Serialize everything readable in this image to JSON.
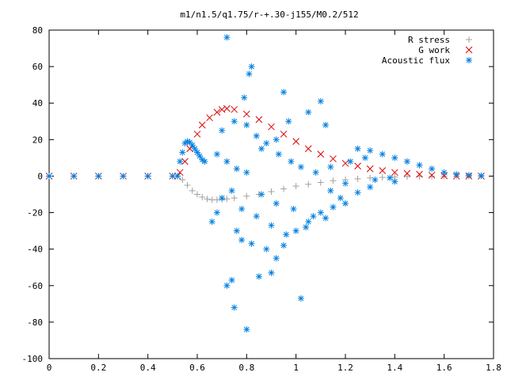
{
  "chart_data": {
    "type": "scatter",
    "title": "m1/n1.5/q1.75/r-+.30-j155/M0.2/512",
    "xlabel": "",
    "ylabel": "",
    "xlim": [
      0,
      1.8
    ],
    "ylim": [
      -100,
      80
    ],
    "xticks": [
      "0",
      "0.2",
      "0.4",
      "0.6",
      "0.8",
      "1",
      "1.2",
      "1.4",
      "1.6",
      "1.8"
    ],
    "yticks": [
      "80",
      "60",
      "40",
      "20",
      "0",
      "-20",
      "-40",
      "-60",
      "-80",
      "-100"
    ],
    "legend_position": "top-right",
    "series": [
      {
        "name": "R stress",
        "marker": "+",
        "color": "#a0a0a0",
        "points": [
          [
            0.0,
            0
          ],
          [
            0.1,
            0
          ],
          [
            0.2,
            0
          ],
          [
            0.3,
            0
          ],
          [
            0.4,
            0
          ],
          [
            0.5,
            0
          ],
          [
            0.52,
            0
          ],
          [
            0.54,
            -2
          ],
          [
            0.56,
            -5
          ],
          [
            0.58,
            -8
          ],
          [
            0.6,
            -10
          ],
          [
            0.62,
            -11.5
          ],
          [
            0.64,
            -12.5
          ],
          [
            0.66,
            -13
          ],
          [
            0.68,
            -13
          ],
          [
            0.7,
            -12.8
          ],
          [
            0.72,
            -12.5
          ],
          [
            0.75,
            -12
          ],
          [
            0.8,
            -11
          ],
          [
            0.85,
            -10
          ],
          [
            0.9,
            -8.5
          ],
          [
            0.95,
            -7
          ],
          [
            1.0,
            -5.5
          ],
          [
            1.05,
            -4.5
          ],
          [
            1.1,
            -3.5
          ],
          [
            1.15,
            -2.5
          ],
          [
            1.2,
            -2
          ],
          [
            1.25,
            -1.5
          ],
          [
            1.3,
            -1
          ],
          [
            1.35,
            -0.7
          ],
          [
            1.4,
            -0.5
          ],
          [
            1.45,
            -0.3
          ],
          [
            1.5,
            -0.2
          ],
          [
            1.55,
            -0.1
          ],
          [
            1.6,
            0
          ],
          [
            1.65,
            0
          ],
          [
            1.7,
            0
          ],
          [
            1.75,
            0
          ]
        ]
      },
      {
        "name": "G work",
        "marker": "x",
        "color": "#dd0000",
        "points": [
          [
            0.0,
            0
          ],
          [
            0.1,
            0
          ],
          [
            0.2,
            0
          ],
          [
            0.3,
            0
          ],
          [
            0.4,
            0
          ],
          [
            0.5,
            0
          ],
          [
            0.52,
            0
          ],
          [
            0.53,
            2
          ],
          [
            0.55,
            8
          ],
          [
            0.57,
            15
          ],
          [
            0.6,
            23
          ],
          [
            0.62,
            28
          ],
          [
            0.65,
            32
          ],
          [
            0.68,
            35
          ],
          [
            0.7,
            36.5
          ],
          [
            0.72,
            37
          ],
          [
            0.75,
            36.5
          ],
          [
            0.8,
            34
          ],
          [
            0.85,
            31
          ],
          [
            0.9,
            27
          ],
          [
            0.95,
            23
          ],
          [
            1.0,
            19
          ],
          [
            1.05,
            15
          ],
          [
            1.1,
            12
          ],
          [
            1.15,
            9.5
          ],
          [
            1.2,
            7
          ],
          [
            1.25,
            5.5
          ],
          [
            1.3,
            4
          ],
          [
            1.35,
            3
          ],
          [
            1.4,
            2
          ],
          [
            1.45,
            1.5
          ],
          [
            1.5,
            1
          ],
          [
            1.55,
            0.5
          ],
          [
            1.6,
            0.2
          ],
          [
            1.65,
            0
          ],
          [
            1.7,
            0
          ],
          [
            1.75,
            0
          ]
        ]
      },
      {
        "name": "Acoustic flux",
        "marker": "*",
        "color": "#0080e0",
        "points": [
          [
            0.0,
            0
          ],
          [
            0.1,
            0
          ],
          [
            0.2,
            0
          ],
          [
            0.3,
            0
          ],
          [
            0.4,
            0
          ],
          [
            0.5,
            0
          ],
          [
            0.52,
            0
          ],
          [
            0.53,
            8
          ],
          [
            0.54,
            13
          ],
          [
            0.55,
            18
          ],
          [
            0.56,
            19
          ],
          [
            0.57,
            18.5
          ],
          [
            0.58,
            17
          ],
          [
            0.59,
            15
          ],
          [
            0.6,
            13
          ],
          [
            0.61,
            11
          ],
          [
            0.62,
            9
          ],
          [
            0.63,
            8
          ],
          [
            0.72,
            76
          ],
          [
            0.81,
            56
          ],
          [
            0.82,
            60
          ],
          [
            0.79,
            43
          ],
          [
            0.95,
            46
          ],
          [
            1.1,
            41
          ],
          [
            1.25,
            15
          ],
          [
            1.3,
            14
          ],
          [
            1.35,
            12
          ],
          [
            1.4,
            10
          ],
          [
            1.45,
            8
          ],
          [
            1.5,
            6
          ],
          [
            1.55,
            4
          ],
          [
            1.6,
            2
          ],
          [
            1.65,
            1
          ],
          [
            1.7,
            0.5
          ],
          [
            1.75,
            0.2
          ],
          [
            0.75,
            -72
          ],
          [
            0.8,
            -84
          ],
          [
            0.72,
            -60
          ],
          [
            0.74,
            -57
          ],
          [
            0.85,
            -55
          ],
          [
            0.9,
            -53
          ],
          [
            1.02,
            -67
          ],
          [
            0.76,
            -30
          ],
          [
            0.78,
            -35
          ],
          [
            0.82,
            -37
          ],
          [
            0.88,
            -40
          ],
          [
            0.92,
            -45
          ],
          [
            0.95,
            -38
          ],
          [
            1.0,
            -30
          ],
          [
            1.05,
            -25
          ],
          [
            1.1,
            -20
          ],
          [
            1.15,
            -17
          ],
          [
            1.2,
            -15
          ],
          [
            0.66,
            -25
          ],
          [
            0.68,
            -20
          ],
          [
            0.7,
            -12
          ],
          [
            0.74,
            -8
          ],
          [
            0.78,
            -18
          ],
          [
            0.84,
            -22
          ],
          [
            0.9,
            -27
          ],
          [
            0.96,
            -32
          ],
          [
            1.04,
            -28
          ],
          [
            1.12,
            -23
          ],
          [
            1.18,
            -12
          ],
          [
            1.25,
            -9
          ],
          [
            1.3,
            -6
          ],
          [
            1.4,
            -3
          ],
          [
            0.7,
            25
          ],
          [
            0.75,
            30
          ],
          [
            0.8,
            28
          ],
          [
            0.84,
            22
          ],
          [
            0.88,
            18
          ],
          [
            0.93,
            12
          ],
          [
            0.98,
            8
          ],
          [
            1.02,
            5
          ],
          [
            1.08,
            2
          ],
          [
            1.14,
            5
          ],
          [
            1.22,
            8
          ],
          [
            1.28,
            10
          ],
          [
            0.68,
            12
          ],
          [
            0.72,
            8
          ],
          [
            0.76,
            4
          ],
          [
            0.8,
            2
          ],
          [
            0.86,
            15
          ],
          [
            0.92,
            20
          ],
          [
            0.97,
            30
          ],
          [
            1.05,
            35
          ],
          [
            1.12,
            28
          ],
          [
            0.86,
            -10
          ],
          [
            0.92,
            -15
          ],
          [
            0.99,
            -18
          ],
          [
            1.07,
            -22
          ],
          [
            1.14,
            -8
          ],
          [
            1.2,
            -4
          ],
          [
            1.32,
            -2
          ],
          [
            1.38,
            -1
          ]
        ]
      }
    ]
  }
}
